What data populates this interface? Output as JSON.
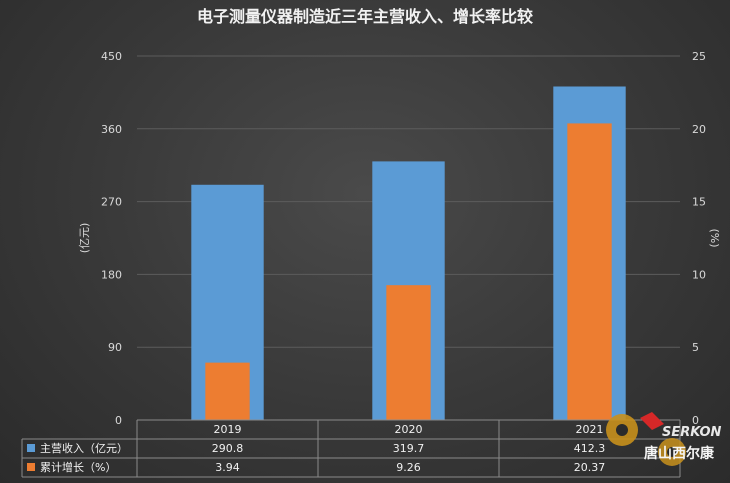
{
  "chart_data": {
    "type": "bar",
    "title": "电子测量仪器制造近三年主营收入、增长率比较",
    "categories": [
      "2019",
      "2020",
      "2021"
    ],
    "series": [
      {
        "name": "主营收入（亿元）",
        "values": [
          290.8,
          319.7,
          412.3
        ],
        "value_labels": [
          "290.8",
          "319.7",
          "412.3"
        ],
        "axis": "left",
        "color": "#5b9bd5"
      },
      {
        "name": "累计增长（%）",
        "values": [
          3.94,
          9.26,
          20.37
        ],
        "value_labels": [
          "3.94",
          "9.26",
          "20.37"
        ],
        "axis": "right",
        "color": "#ed7d31"
      }
    ],
    "ylabel": "(亿元)",
    "y2label": "(%)",
    "ylim": [
      0,
      450
    ],
    "y2lim": [
      0,
      25
    ],
    "yticks": [
      "0",
      "90",
      "180",
      "270",
      "360",
      "450"
    ],
    "y2ticks": [
      "0",
      "5",
      "10",
      "15",
      "20",
      "25"
    ],
    "grid": true,
    "legend": "data-table-bottom"
  },
  "watermark": {
    "brand": "SERKON",
    "text": "唐山西尔康"
  }
}
